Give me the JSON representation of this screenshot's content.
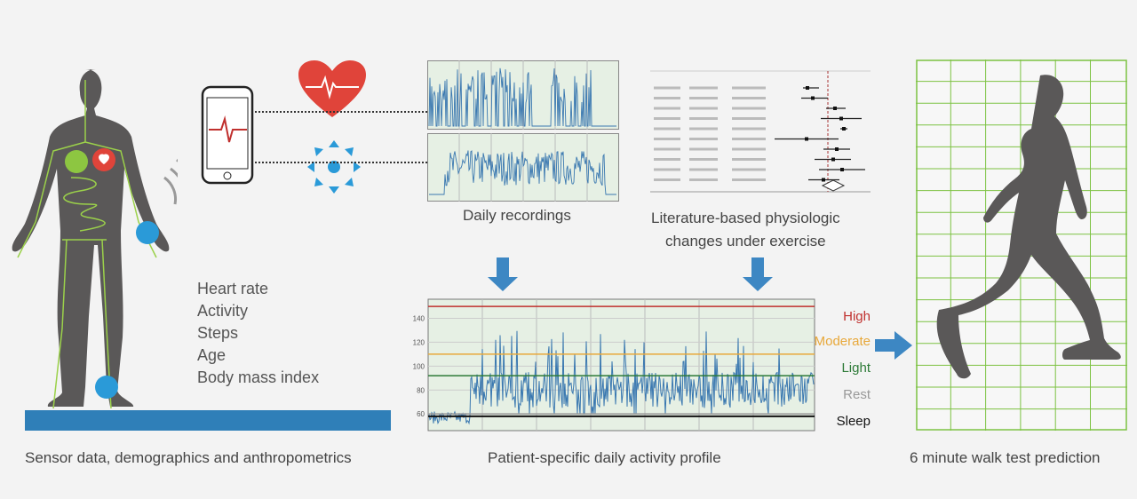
{
  "inputs": {
    "features": [
      "Heart rate",
      "Activity",
      "Steps",
      "Age",
      "Body mass index"
    ]
  },
  "captions": {
    "left": "Sensor data, demographics and anthropometrics",
    "recordings": "Daily recordings",
    "literature_line1": "Literature-based physiologic",
    "literature_line2": "changes under exercise",
    "profile": "Patient-specific daily activity profile",
    "prediction": "6 minute walk test prediction"
  },
  "profile_chart": {
    "y_ticks": [
      60,
      80,
      100,
      120,
      140
    ],
    "ylim": [
      46,
      156
    ],
    "levels": [
      {
        "label": "High",
        "value": 150,
        "color": "#c0302e"
      },
      {
        "label": "Moderate",
        "value": 110,
        "color": "#e8a83a"
      },
      {
        "label": "Light",
        "value": 92,
        "color": "#2d7a37"
      },
      {
        "label": "Rest",
        "value": 60,
        "color": "#999999"
      },
      {
        "label": "Sleep",
        "value": 58,
        "color": "#111111"
      }
    ]
  },
  "colors": {
    "accent": "#3d87c3",
    "silhouette": "#5a5858",
    "grid": "#7cc242",
    "heart": "#e0443a",
    "floor": "#2f7fb8"
  }
}
